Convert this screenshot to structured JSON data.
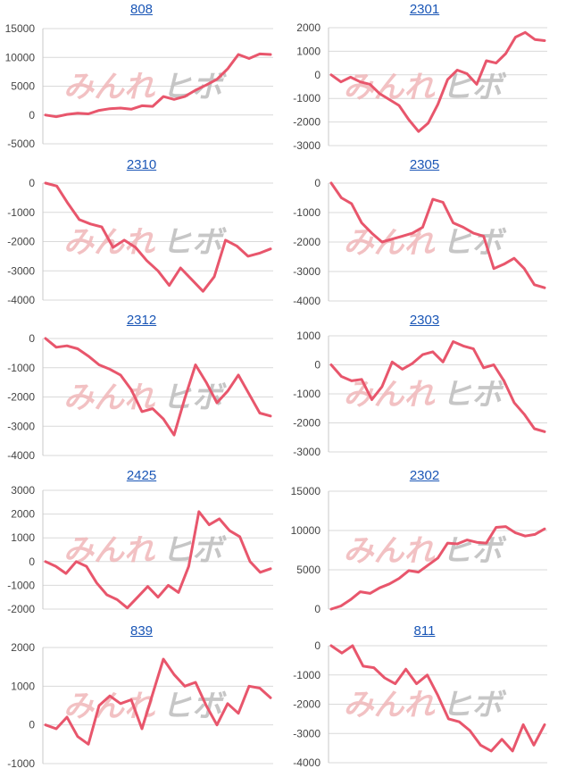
{
  "watermark": {
    "part1": "みんれ",
    "part2": "ヒボ"
  },
  "colors": {
    "series": "#e8566c",
    "title": "#1a56b6",
    "grid": "#d9d9d9"
  },
  "chart_data": [
    {
      "type": "line",
      "title": "808",
      "yticks": [
        "15000",
        "10000",
        "5000",
        "0",
        "-5000"
      ],
      "ylim": [
        -5000,
        15000
      ],
      "grid": true,
      "series": [
        {
          "values": [
            0,
            -300,
            100,
            300,
            200,
            800,
            1100,
            1200,
            1000,
            1600,
            1500,
            3200,
            2700,
            3200,
            4300,
            5200,
            6200,
            8000,
            10500,
            9800,
            10600,
            10500
          ]
        }
      ]
    },
    {
      "type": "line",
      "title": "2301",
      "yticks": [
        "2000",
        "1000",
        "0",
        "-1000",
        "-2000",
        "-3000"
      ],
      "ylim": [
        -3000,
        2000
      ],
      "grid": true,
      "series": [
        {
          "values": [
            0,
            -300,
            -100,
            -300,
            -400,
            -800,
            -1050,
            -1300,
            -1900,
            -2400,
            -2050,
            -1250,
            -200,
            200,
            50,
            -400,
            600,
            500,
            900,
            1600,
            1800,
            1500,
            1450
          ]
        }
      ]
    },
    {
      "type": "line",
      "title": "2310",
      "yticks": [
        "0",
        "-1000",
        "-2000",
        "-3000",
        "-4000"
      ],
      "ylim": [
        -4000,
        0
      ],
      "grid": true,
      "series": [
        {
          "values": [
            0,
            -100,
            -700,
            -1250,
            -1400,
            -1500,
            -2200,
            -1950,
            -2200,
            -2650,
            -3000,
            -3500,
            -2900,
            -3300,
            -3700,
            -3200,
            -1950,
            -2150,
            -2500,
            -2400,
            -2250
          ]
        }
      ]
    },
    {
      "type": "line",
      "title": "2305",
      "yticks": [
        "0",
        "-1000",
        "-2000",
        "-3000",
        "-4000"
      ],
      "ylim": [
        -4000,
        0
      ],
      "grid": true,
      "series": [
        {
          "values": [
            0,
            -500,
            -700,
            -1350,
            -1700,
            -2000,
            -1900,
            -1800,
            -1700,
            -1500,
            -550,
            -650,
            -1350,
            -1500,
            -1700,
            -1800,
            -2900,
            -2750,
            -2550,
            -2900,
            -3450,
            -3550
          ]
        }
      ]
    },
    {
      "type": "line",
      "title": "2312",
      "yticks": [
        "0",
        "-1000",
        "-2000",
        "-3000",
        "-4000"
      ],
      "ylim": [
        -4000,
        0
      ],
      "grid": true,
      "series": [
        {
          "values": [
            0,
            -300,
            -250,
            -350,
            -600,
            -900,
            -1050,
            -1250,
            -1750,
            -2500,
            -2400,
            -2750,
            -3300,
            -2050,
            -900,
            -1500,
            -2200,
            -1800,
            -1250,
            -1900,
            -2550,
            -2650
          ]
        }
      ]
    },
    {
      "type": "line",
      "title": "2303",
      "yticks": [
        "1000",
        "0",
        "-1000",
        "-2000",
        "-3000"
      ],
      "ylim": [
        -3000,
        1000
      ],
      "grid": true,
      "series": [
        {
          "values": [
            0,
            -400,
            -550,
            -500,
            -1200,
            -750,
            100,
            -150,
            50,
            350,
            450,
            100,
            800,
            650,
            550,
            -100,
            0,
            -550,
            -1300,
            -1700,
            -2200,
            -2300
          ]
        }
      ]
    },
    {
      "type": "line",
      "title": "2425",
      "yticks": [
        "3000",
        "2000",
        "1000",
        "0",
        "-1000",
        "-2000"
      ],
      "ylim": [
        -2000,
        3000
      ],
      "grid": true,
      "series": [
        {
          "values": [
            0,
            -200,
            -500,
            0,
            -200,
            -900,
            -1400,
            -1600,
            -1950,
            -1500,
            -1050,
            -1500,
            -1000,
            -1300,
            -200,
            2100,
            1550,
            1800,
            1300,
            1050,
            0,
            -450,
            -300
          ]
        }
      ]
    },
    {
      "type": "line",
      "title": "2302",
      "yticks": [
        "15000",
        "10000",
        "5000",
        "0"
      ],
      "ylim": [
        0,
        15000
      ],
      "grid": true,
      "series": [
        {
          "values": [
            0,
            400,
            1200,
            2200,
            2000,
            2700,
            3200,
            3900,
            4900,
            4700,
            5600,
            6500,
            8400,
            8300,
            8800,
            8500,
            8400,
            10400,
            10500,
            9700,
            9300,
            9500,
            10200
          ]
        }
      ]
    },
    {
      "type": "line",
      "title": "839",
      "yticks": [
        "2000",
        "1000",
        "0",
        "-1000"
      ],
      "ylim": [
        -1000,
        2000
      ],
      "grid": true,
      "series": [
        {
          "values": [
            0,
            -100,
            200,
            -300,
            -500,
            500,
            750,
            550,
            650,
            -100,
            800,
            1700,
            1300,
            1000,
            1100,
            500,
            0,
            550,
            300,
            1000,
            950,
            700
          ]
        }
      ]
    },
    {
      "type": "line",
      "title": "811",
      "yticks": [
        "0",
        "-1000",
        "-2000",
        "-3000",
        "-4000"
      ],
      "ylim": [
        -4000,
        0
      ],
      "grid": true,
      "series": [
        {
          "values": [
            0,
            -250,
            0,
            -700,
            -750,
            -1100,
            -1300,
            -800,
            -1300,
            -1000,
            -1700,
            -2500,
            -2600,
            -2900,
            -3400,
            -3600,
            -3200,
            -3600,
            -2700,
            -3400,
            -2700
          ]
        }
      ]
    }
  ]
}
